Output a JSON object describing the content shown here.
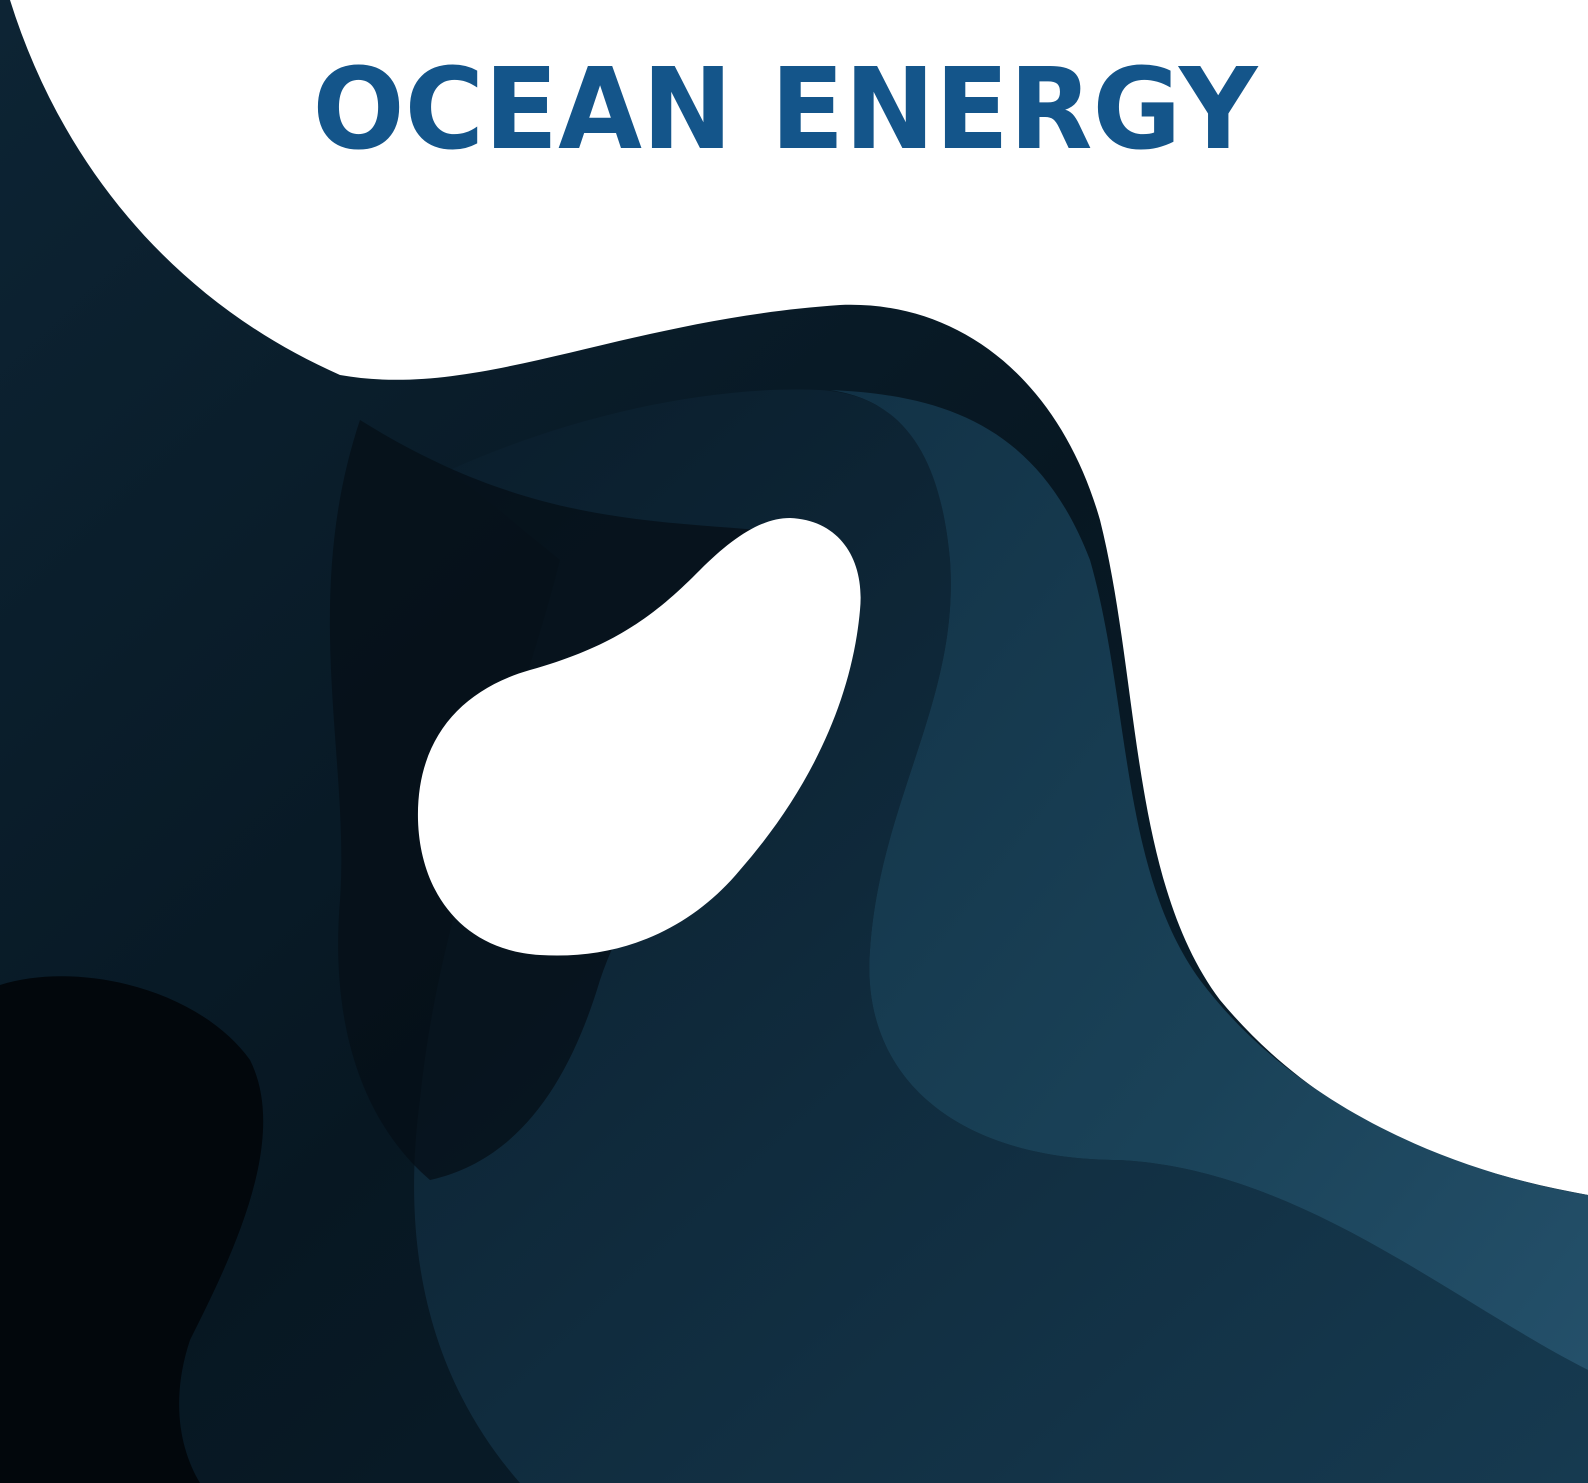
{
  "title": "OCEAN ENERGY"
}
